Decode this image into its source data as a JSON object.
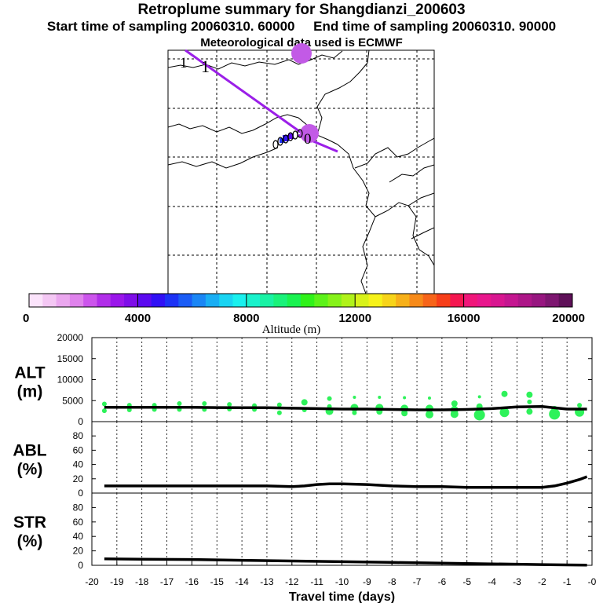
{
  "header": {
    "title": "Retroplume summary for Shangdianzi_200603",
    "start": "Start time of sampling 20060310. 60000",
    "end": "End time of sampling 20060310. 90000",
    "met": "Meteorological data used is ECMWF"
  },
  "map": {
    "track_color": "#9b1fe8",
    "cluster_color": "#c25ae6",
    "labels": [
      "1",
      "1",
      "0"
    ]
  },
  "colorbar": {
    "label": "Altitude (m)",
    "min": 0,
    "max": 20000,
    "ticks": [
      "0",
      "4000",
      "8000",
      "12000",
      "16000",
      "20000"
    ],
    "colors": [
      "#fbe3fb",
      "#f4c7f4",
      "#eba7ef",
      "#df82ec",
      "#cc55ec",
      "#b12ee9",
      "#9a16ea",
      "#7e0de8",
      "#5b0af0",
      "#3010f5",
      "#1c32f5",
      "#1a5cf5",
      "#1a86f5",
      "#19aef4",
      "#19d4f2",
      "#19f0ee",
      "#19f2cc",
      "#19f2a4",
      "#19f27a",
      "#19f250",
      "#2ff219",
      "#5cf219",
      "#86f219",
      "#b0f219",
      "#d8f219",
      "#f6f219",
      "#f7d419",
      "#f7b019",
      "#f78a19",
      "#f76419",
      "#f73e19",
      "#f41650",
      "#f0167a",
      "#e8168c",
      "#d81690",
      "#c41690",
      "#ad1688",
      "#971680",
      "#7d1670",
      "#5e1058"
    ]
  },
  "chart_data": [
    {
      "type": "line",
      "panel": "ALT",
      "ylabel": "ALT\n(m)",
      "ylabel_lines": [
        "ALT",
        "(m)"
      ],
      "ylim": [
        0,
        20000
      ],
      "yticks": [
        0,
        5000,
        10000,
        15000,
        20000
      ],
      "xlim": [
        -20,
        0
      ],
      "series": [
        {
          "name": "mean altitude",
          "x": [
            -19.5,
            -19,
            -18,
            -17,
            -16,
            -15,
            -14,
            -13,
            -12,
            -11,
            -10,
            -9,
            -8,
            -7,
            -6,
            -5,
            -4,
            -3,
            -2,
            -1,
            -0.2
          ],
          "y": [
            3400,
            3400,
            3400,
            3400,
            3400,
            3350,
            3300,
            3300,
            3200,
            3100,
            3000,
            3000,
            2900,
            2800,
            2800,
            2900,
            3100,
            3500,
            3600,
            3000,
            3000
          ]
        }
      ],
      "points": [
        {
          "x": -19.5,
          "y": 4200,
          "r": 3
        },
        {
          "x": -19.5,
          "y": 2600,
          "r": 3
        },
        {
          "x": -18.5,
          "y": 3900,
          "r": 3
        },
        {
          "x": -18.5,
          "y": 2800,
          "r": 3
        },
        {
          "x": -17.5,
          "y": 3900,
          "r": 3
        },
        {
          "x": -17.5,
          "y": 2900,
          "r": 3
        },
        {
          "x": -16.5,
          "y": 4300,
          "r": 3
        },
        {
          "x": -16.5,
          "y": 2900,
          "r": 3
        },
        {
          "x": -15.5,
          "y": 4300,
          "r": 3
        },
        {
          "x": -15.5,
          "y": 2900,
          "r": 3
        },
        {
          "x": -14.5,
          "y": 4100,
          "r": 3
        },
        {
          "x": -14.5,
          "y": 3000,
          "r": 3
        },
        {
          "x": -13.5,
          "y": 3800,
          "r": 3
        },
        {
          "x": -13.5,
          "y": 2900,
          "r": 3
        },
        {
          "x": -12.5,
          "y": 4000,
          "r": 3
        },
        {
          "x": -12.5,
          "y": 2100,
          "r": 3
        },
        {
          "x": -11.5,
          "y": 4600,
          "r": 4
        },
        {
          "x": -11.5,
          "y": 2800,
          "r": 3
        },
        {
          "x": -10.5,
          "y": 5500,
          "r": 3
        },
        {
          "x": -10.5,
          "y": 3600,
          "r": 3
        },
        {
          "x": -10.5,
          "y": 2500,
          "r": 5
        },
        {
          "x": -9.5,
          "y": 5800,
          "r": 2
        },
        {
          "x": -9.5,
          "y": 3300,
          "r": 5
        },
        {
          "x": -9.5,
          "y": 2100,
          "r": 3
        },
        {
          "x": -8.5,
          "y": 5800,
          "r": 2
        },
        {
          "x": -8.5,
          "y": 3300,
          "r": 5
        },
        {
          "x": -8.5,
          "y": 2400,
          "r": 4
        },
        {
          "x": -7.5,
          "y": 5700,
          "r": 2
        },
        {
          "x": -7.5,
          "y": 3100,
          "r": 5
        },
        {
          "x": -7.5,
          "y": 2000,
          "r": 4
        },
        {
          "x": -6.5,
          "y": 5600,
          "r": 2
        },
        {
          "x": -6.5,
          "y": 3100,
          "r": 5
        },
        {
          "x": -6.5,
          "y": 1700,
          "r": 5
        },
        {
          "x": -5.5,
          "y": 4300,
          "r": 4
        },
        {
          "x": -5.5,
          "y": 2800,
          "r": 5
        },
        {
          "x": -5.5,
          "y": 1800,
          "r": 5
        },
        {
          "x": -4.5,
          "y": 5900,
          "r": 2
        },
        {
          "x": -4.5,
          "y": 3600,
          "r": 4
        },
        {
          "x": -4.5,
          "y": 1600,
          "r": 7
        },
        {
          "x": -3.5,
          "y": 6600,
          "r": 4
        },
        {
          "x": -3.5,
          "y": 2200,
          "r": 6
        },
        {
          "x": -2.5,
          "y": 6400,
          "r": 4
        },
        {
          "x": -2.5,
          "y": 4700,
          "r": 3
        },
        {
          "x": -2.5,
          "y": 2400,
          "r": 4
        },
        {
          "x": -1.5,
          "y": 1800,
          "r": 7
        },
        {
          "x": -1.5,
          "y": 3000,
          "r": 4
        },
        {
          "x": -0.5,
          "y": 3900,
          "r": 3
        },
        {
          "x": -0.5,
          "y": 2300,
          "r": 6
        }
      ]
    },
    {
      "type": "line",
      "panel": "ABL",
      "ylabel": "ABL\n(%)",
      "ylabel_lines": [
        "ABL",
        "(%)"
      ],
      "ylim": [
        0,
        100
      ],
      "yticks": [
        0,
        20,
        40,
        60,
        80
      ],
      "xlim": [
        -20,
        0
      ],
      "series": [
        {
          "name": "ABL fraction",
          "x": [
            -19.5,
            -19,
            -18,
            -17,
            -16,
            -15,
            -14,
            -13,
            -12,
            -11.5,
            -11,
            -10.5,
            -10,
            -9,
            -8,
            -7,
            -6,
            -5,
            -4,
            -3,
            -2,
            -1.5,
            -1,
            -0.5,
            -0.2
          ],
          "y": [
            10,
            10,
            10,
            10,
            10,
            10,
            10,
            10,
            9,
            10,
            12,
            13,
            13,
            12,
            10,
            9,
            9,
            8,
            8,
            8,
            8,
            10,
            14,
            19,
            23
          ]
        }
      ]
    },
    {
      "type": "line",
      "panel": "STR",
      "ylabel": "STR\n(%)",
      "ylabel_lines": [
        "STR",
        "(%)"
      ],
      "ylim": [
        0,
        100
      ],
      "yticks": [
        0,
        20,
        40,
        60,
        80
      ],
      "xlim": [
        -20,
        0
      ],
      "xlabel": "Travel time (days)",
      "xticks": [
        "-20",
        "-19",
        "-18",
        "-17",
        "-16",
        "-15",
        "-14",
        "-13",
        "-12",
        "-11",
        "-10",
        "-9",
        "-8",
        "-7",
        "-6",
        "-5",
        "-4",
        "-3",
        "-2",
        "-1",
        "-0"
      ],
      "series": [
        {
          "name": "stratospheric fraction",
          "x": [
            -19.5,
            -18,
            -16,
            -14,
            -12,
            -10,
            -8,
            -6,
            -4,
            -3,
            -2,
            -1,
            -0.2
          ],
          "y": [
            9,
            8.5,
            8,
            7,
            6,
            5,
            4,
            3,
            2,
            1.5,
            1,
            0.5,
            0.2
          ]
        }
      ]
    }
  ]
}
